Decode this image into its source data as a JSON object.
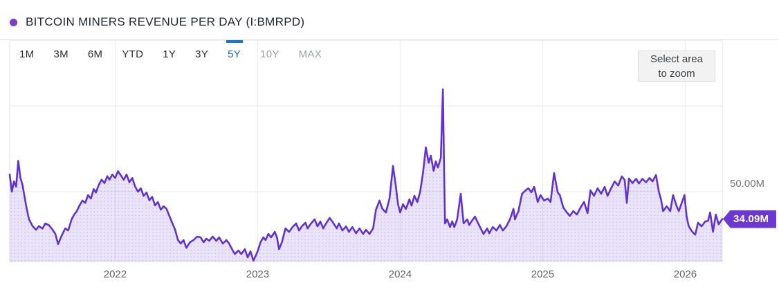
{
  "header": {
    "title": "BITCOIN MINERS REVENUE PER DAY (I:BMRPD)"
  },
  "toolbar": {
    "ranges": [
      {
        "label": "1M",
        "state": "normal"
      },
      {
        "label": "3M",
        "state": "normal"
      },
      {
        "label": "6M",
        "state": "normal"
      },
      {
        "label": "YTD",
        "state": "normal"
      },
      {
        "label": "1Y",
        "state": "normal"
      },
      {
        "label": "3Y",
        "state": "normal"
      },
      {
        "label": "5Y",
        "state": "selected"
      },
      {
        "label": "10Y",
        "state": "disabled"
      },
      {
        "label": "MAX",
        "state": "disabled"
      }
    ],
    "zoom_button": {
      "line1": "Select area",
      "line2": "to zoom"
    }
  },
  "colors": {
    "series_dot": "#7b3fc7",
    "line": "#6132cf",
    "fill_base": "rgba(124,88,214,0.16)",
    "fill_dots": "rgba(124,88,214,0.30)",
    "gridline": "#e9e9e9",
    "plot_border": "#e3e3e3",
    "badge_bg": "#6b38d4",
    "selected_blue": "#1976d2"
  },
  "chart_data": {
    "type": "area",
    "title": "BITCOIN MINERS REVENUE PER DAY (I:BMRPD)",
    "series_name": "I:BMRPD",
    "x_range_years": [
      2021.26,
      2026.26
    ],
    "y_range_millions": [
      9.3,
      138.3
    ],
    "x_ticks": [
      {
        "value": 2022,
        "label": "2022"
      },
      {
        "value": 2023,
        "label": "2023"
      },
      {
        "value": 2024,
        "label": "2024"
      },
      {
        "value": 2025,
        "label": "2025"
      },
      {
        "value": 2026,
        "label": "2026"
      }
    ],
    "y_gridlines": [
      50,
      100
    ],
    "y_axis_labels": [
      {
        "value": 50,
        "label": "50.00M"
      }
    ],
    "last_point": {
      "value": 34.09,
      "label": "34.09M"
    },
    "points": [
      [
        2021.26,
        60
      ],
      [
        2021.275,
        50
      ],
      [
        2021.29,
        56
      ],
      [
        2021.305,
        53
      ],
      [
        2021.32,
        68
      ],
      [
        2021.335,
        58
      ],
      [
        2021.35,
        54
      ],
      [
        2021.375,
        42
      ],
      [
        2021.395,
        34
      ],
      [
        2021.42,
        30
      ],
      [
        2021.445,
        27.8
      ],
      [
        2021.465,
        30
      ],
      [
        2021.49,
        28.5
      ],
      [
        2021.51,
        31.5
      ],
      [
        2021.535,
        30.5
      ],
      [
        2021.555,
        28.5
      ],
      [
        2021.58,
        25.5
      ],
      [
        2021.6,
        19.5
      ],
      [
        2021.625,
        24.5
      ],
      [
        2021.65,
        28.6
      ],
      [
        2021.67,
        27.4
      ],
      [
        2021.695,
        34
      ],
      [
        2021.715,
        37
      ],
      [
        2021.73,
        38.5
      ],
      [
        2021.75,
        42
      ],
      [
        2021.77,
        44.8
      ],
      [
        2021.79,
        43.5
      ],
      [
        2021.81,
        48
      ],
      [
        2021.83,
        46
      ],
      [
        2021.85,
        51.5
      ],
      [
        2021.865,
        49.5
      ],
      [
        2021.885,
        54
      ],
      [
        2021.905,
        57
      ],
      [
        2021.925,
        55
      ],
      [
        2021.945,
        59
      ],
      [
        2021.96,
        57
      ],
      [
        2021.98,
        60
      ],
      [
        2022.0,
        58
      ],
      [
        2022.02,
        62
      ],
      [
        2022.04,
        59.5
      ],
      [
        2022.06,
        57
      ],
      [
        2022.08,
        60
      ],
      [
        2022.1,
        55.5
      ],
      [
        2022.12,
        58
      ],
      [
        2022.14,
        53
      ],
      [
        2022.16,
        50
      ],
      [
        2022.18,
        52
      ],
      [
        2022.2,
        47.5
      ],
      [
        2022.22,
        49.5
      ],
      [
        2022.24,
        45
      ],
      [
        2022.26,
        47
      ],
      [
        2022.28,
        42
      ],
      [
        2022.3,
        44
      ],
      [
        2022.32,
        39.5
      ],
      [
        2022.34,
        41.5
      ],
      [
        2022.36,
        40
      ],
      [
        2022.38,
        36
      ],
      [
        2022.4,
        32
      ],
      [
        2022.42,
        28
      ],
      [
        2022.44,
        22
      ],
      [
        2022.46,
        19.8
      ],
      [
        2022.48,
        21.8
      ],
      [
        2022.5,
        17.3
      ],
      [
        2022.525,
        20.6
      ],
      [
        2022.55,
        21.8
      ],
      [
        2022.575,
        23.8
      ],
      [
        2022.6,
        23.4
      ],
      [
        2022.62,
        20.6
      ],
      [
        2022.64,
        22.6
      ],
      [
        2022.66,
        21.4
      ],
      [
        2022.685,
        23.8
      ],
      [
        2022.71,
        21.4
      ],
      [
        2022.73,
        23.4
      ],
      [
        2022.755,
        19.8
      ],
      [
        2022.78,
        21.8
      ],
      [
        2022.8,
        19.8
      ],
      [
        2022.82,
        16.5
      ],
      [
        2022.84,
        13.7
      ],
      [
        2022.865,
        15.7
      ],
      [
        2022.885,
        13.7
      ],
      [
        2022.91,
        16.5
      ],
      [
        2022.93,
        11.7
      ],
      [
        2022.95,
        15.3
      ],
      [
        2022.97,
        9.8
      ],
      [
        2023.0,
        15.3
      ],
      [
        2023.02,
        20.6
      ],
      [
        2023.04,
        23.4
      ],
      [
        2023.055,
        21.8
      ],
      [
        2023.075,
        25.4
      ],
      [
        2023.095,
        23.4
      ],
      [
        2023.12,
        26.6
      ],
      [
        2023.135,
        23.4
      ],
      [
        2023.15,
        16.5
      ],
      [
        2023.17,
        20.6
      ],
      [
        2023.195,
        28.6
      ],
      [
        2023.22,
        26.6
      ],
      [
        2023.245,
        29.4
      ],
      [
        2023.27,
        31.5
      ],
      [
        2023.29,
        27.4
      ],
      [
        2023.31,
        29.8
      ],
      [
        2023.335,
        31.9
      ],
      [
        2023.35,
        28.6
      ],
      [
        2023.375,
        31.5
      ],
      [
        2023.4,
        33.9
      ],
      [
        2023.42,
        29.8
      ],
      [
        2023.44,
        32.7
      ],
      [
        2023.46,
        28.6
      ],
      [
        2023.48,
        31.5
      ],
      [
        2023.505,
        34.7
      ],
      [
        2023.53,
        31.9
      ],
      [
        2023.555,
        28.6
      ],
      [
        2023.57,
        31.5
      ],
      [
        2023.595,
        27.4
      ],
      [
        2023.62,
        29.8
      ],
      [
        2023.64,
        26.6
      ],
      [
        2023.665,
        29.4
      ],
      [
        2023.69,
        25.8
      ],
      [
        2023.715,
        28.6
      ],
      [
        2023.74,
        25.4
      ],
      [
        2023.76,
        27.8
      ],
      [
        2023.785,
        25.4
      ],
      [
        2023.81,
        28.6
      ],
      [
        2023.83,
        39.5
      ],
      [
        2023.855,
        44.8
      ],
      [
        2023.875,
        40
      ],
      [
        2023.9,
        37.9
      ],
      [
        2023.925,
        46
      ],
      [
        2023.95,
        65
      ],
      [
        2023.97,
        52.8
      ],
      [
        2023.985,
        42.7
      ],
      [
        2024.0,
        37.9
      ],
      [
        2024.02,
        42.7
      ],
      [
        2024.04,
        39.9
      ],
      [
        2024.065,
        45.6
      ],
      [
        2024.08,
        41.9
      ],
      [
        2024.1,
        47.6
      ],
      [
        2024.12,
        44
      ],
      [
        2024.14,
        50
      ],
      [
        2024.16,
        60.9
      ],
      [
        2024.18,
        75.8
      ],
      [
        2024.2,
        66.9
      ],
      [
        2024.215,
        71
      ],
      [
        2024.235,
        62.1
      ],
      [
        2024.25,
        67.7
      ],
      [
        2024.265,
        64.1
      ],
      [
        2024.285,
        69.8
      ],
      [
        2024.3,
        109.7
      ],
      [
        2024.31,
        52.8
      ],
      [
        2024.315,
        31.5
      ],
      [
        2024.33,
        33.9
      ],
      [
        2024.35,
        29.4
      ],
      [
        2024.365,
        32.7
      ],
      [
        2024.38,
        29.4
      ],
      [
        2024.4,
        33.9
      ],
      [
        2024.425,
        48.8
      ],
      [
        2024.445,
        31.5
      ],
      [
        2024.47,
        33.9
      ],
      [
        2024.485,
        30.6
      ],
      [
        2024.5,
        32.7
      ],
      [
        2024.525,
        35.5
      ],
      [
        2024.545,
        31.9
      ],
      [
        2024.57,
        27.8
      ],
      [
        2024.585,
        25.4
      ],
      [
        2024.61,
        28.6
      ],
      [
        2024.625,
        25.8
      ],
      [
        2024.65,
        29.4
      ],
      [
        2024.675,
        27.4
      ],
      [
        2024.7,
        30.6
      ],
      [
        2024.72,
        27.4
      ],
      [
        2024.745,
        29.8
      ],
      [
        2024.77,
        33.9
      ],
      [
        2024.795,
        40
      ],
      [
        2024.805,
        33.9
      ],
      [
        2024.83,
        38.7
      ],
      [
        2024.855,
        48.8
      ],
      [
        2024.88,
        50.8
      ],
      [
        2024.9,
        52
      ],
      [
        2024.92,
        49.6
      ],
      [
        2024.94,
        52.8
      ],
      [
        2024.965,
        44
      ],
      [
        2024.985,
        48
      ],
      [
        2025.01,
        44.8
      ],
      [
        2025.035,
        46
      ],
      [
        2025.055,
        44
      ],
      [
        2025.08,
        60.9
      ],
      [
        2025.105,
        49.6
      ],
      [
        2025.12,
        48
      ],
      [
        2025.145,
        40.7
      ],
      [
        2025.17,
        37.9
      ],
      [
        2025.19,
        35.9
      ],
      [
        2025.215,
        38.7
      ],
      [
        2025.24,
        36.7
      ],
      [
        2025.265,
        40.7
      ],
      [
        2025.29,
        44
      ],
      [
        2025.315,
        37.5
      ],
      [
        2025.335,
        50.8
      ],
      [
        2025.36,
        47.6
      ],
      [
        2025.385,
        52
      ],
      [
        2025.41,
        48.8
      ],
      [
        2025.435,
        52.8
      ],
      [
        2025.455,
        47.6
      ],
      [
        2025.48,
        52
      ],
      [
        2025.505,
        56
      ],
      [
        2025.53,
        53.6
      ],
      [
        2025.555,
        58.9
      ],
      [
        2025.575,
        56.9
      ],
      [
        2025.59,
        43.5
      ],
      [
        2025.605,
        57.7
      ],
      [
        2025.63,
        55
      ],
      [
        2025.655,
        57.5
      ],
      [
        2025.675,
        54.8
      ],
      [
        2025.7,
        57.5
      ],
      [
        2025.725,
        55.5
      ],
      [
        2025.75,
        58
      ],
      [
        2025.77,
        56
      ],
      [
        2025.795,
        59.7
      ],
      [
        2025.815,
        50
      ],
      [
        2025.83,
        45.6
      ],
      [
        2025.845,
        38.7
      ],
      [
        2025.87,
        41.5
      ],
      [
        2025.895,
        38.7
      ],
      [
        2025.915,
        48
      ],
      [
        2025.94,
        41.5
      ],
      [
        2025.955,
        38.7
      ],
      [
        2025.995,
        48
      ],
      [
        2026.01,
        35.5
      ],
      [
        2026.025,
        29.8
      ],
      [
        2026.05,
        26.6
      ],
      [
        2026.07,
        25
      ],
      [
        2026.09,
        31.9
      ],
      [
        2026.115,
        29.8
      ],
      [
        2026.14,
        32.7
      ],
      [
        2026.16,
        33
      ],
      [
        2026.175,
        37.9
      ],
      [
        2026.195,
        26.6
      ],
      [
        2026.215,
        36.7
      ],
      [
        2026.235,
        31
      ],
      [
        2026.26,
        34.09
      ]
    ]
  }
}
